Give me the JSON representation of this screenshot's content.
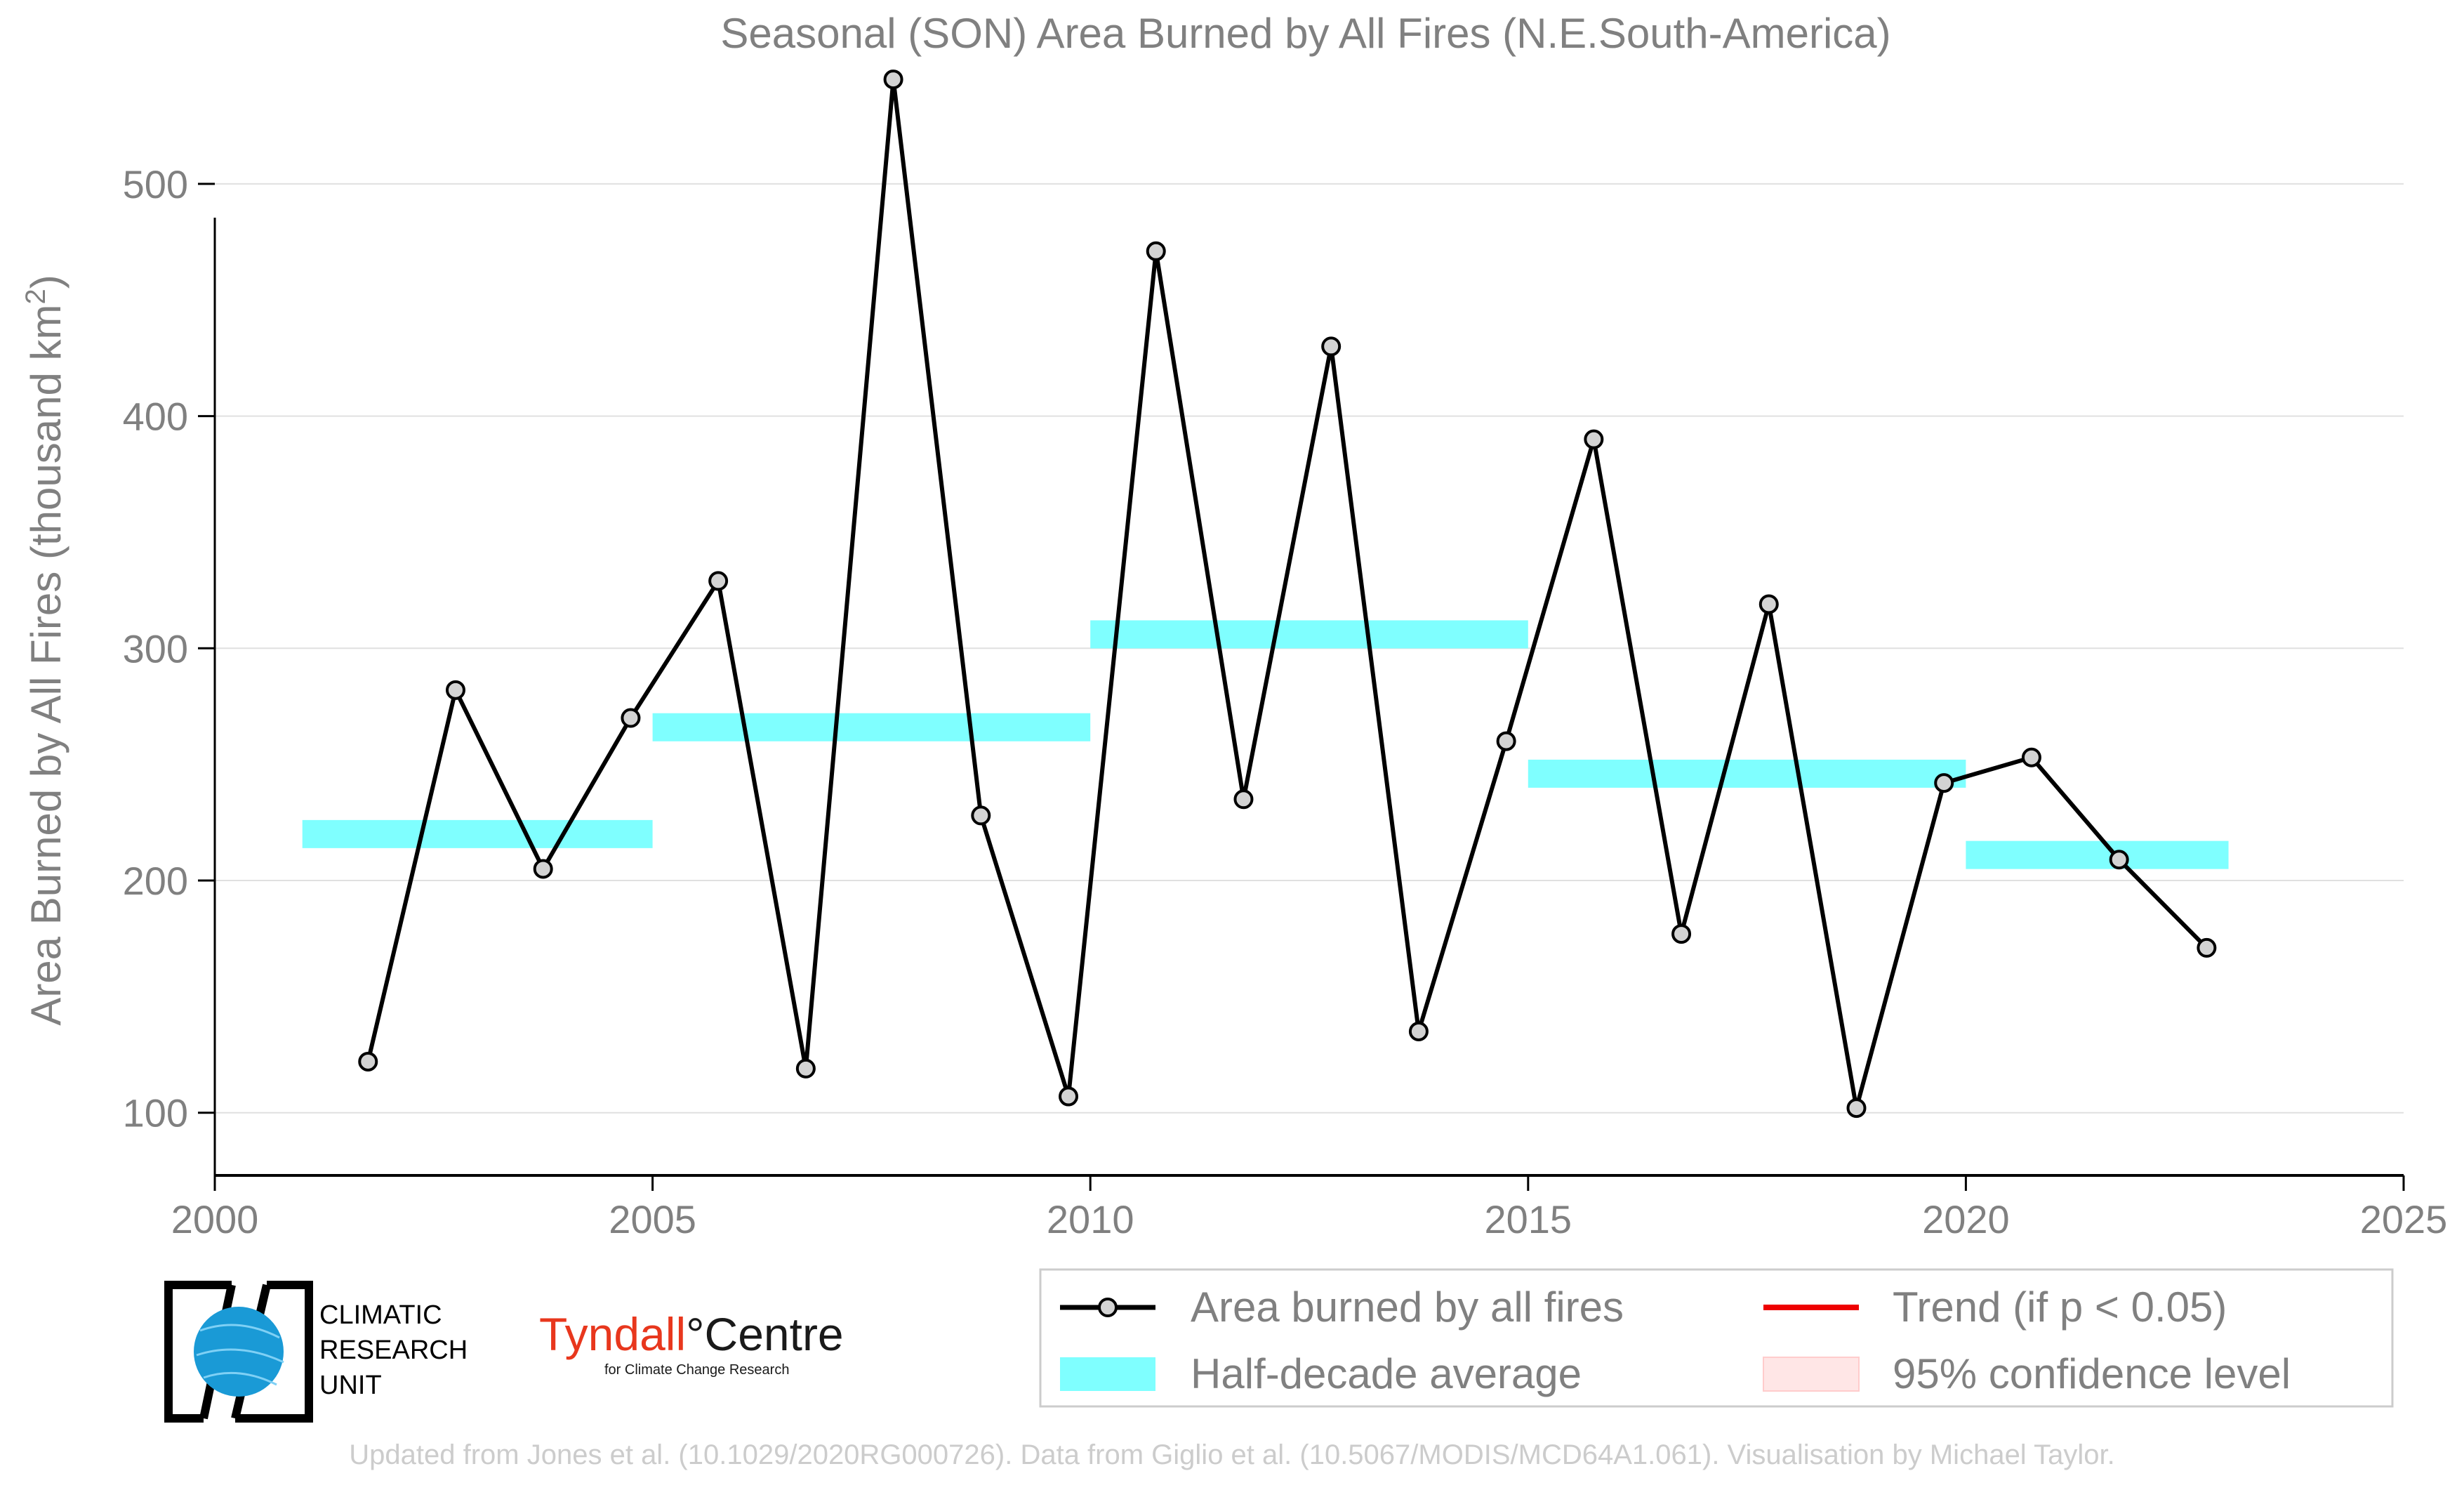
{
  "chart_data": {
    "type": "line",
    "title": "Seasonal (SON) Area Burned by All Fires (N.E.South-America)",
    "ylabel_main": "Area Burned by All Fires (thousand km",
    "ylabel_sup": "2",
    "ylabel_end": ")",
    "xlim": [
      2000,
      2025
    ],
    "ylim": [
      73,
      555
    ],
    "xticks": [
      2000,
      2005,
      2010,
      2015,
      2020,
      2025
    ],
    "yticks": [
      100,
      200,
      300,
      400,
      500
    ],
    "grid": "horizontal",
    "series": [
      {
        "name": "Area burned by all fires",
        "color": "#000000",
        "x": [
          2001.75,
          2002.75,
          2003.75,
          2004.75,
          2005.75,
          2006.75,
          2007.75,
          2008.75,
          2009.75,
          2010.75,
          2011.75,
          2012.75,
          2013.75,
          2014.75,
          2015.75,
          2016.75,
          2017.75,
          2018.75,
          2019.75,
          2020.75,
          2021.75,
          2022.75
        ],
        "values": [
          122,
          282,
          205,
          270,
          329,
          119,
          545,
          228,
          107,
          471,
          235,
          430,
          135,
          260,
          390,
          177,
          319,
          102,
          242,
          253,
          209,
          171
        ]
      }
    ],
    "half_decade_average": {
      "name": "Half-decade average",
      "color": "#7fffff",
      "segments": [
        {
          "x0": 2001,
          "x1": 2005,
          "value": 220
        },
        {
          "x0": 2005,
          "x1": 2010,
          "value": 266
        },
        {
          "x0": 2010,
          "x1": 2015,
          "value": 306
        },
        {
          "x0": 2015,
          "x1": 2020,
          "value": 246
        },
        {
          "x0": 2020,
          "x1": 2023,
          "value": 211
        }
      ]
    },
    "legend": {
      "placement": "bottom-right",
      "entries": [
        {
          "label": "Area burned by all fires",
          "kind": "line-marker",
          "color": "#000000"
        },
        {
          "label": "Trend (if p < 0.05)",
          "kind": "line",
          "color": "#ee0000"
        },
        {
          "label": "Half-decade average",
          "kind": "patch",
          "color": "#7fffff"
        },
        {
          "label": "95% confidence level",
          "kind": "patch",
          "color": "#ffe6e6"
        }
      ]
    }
  },
  "logos": {
    "cru_lines": [
      "CLIMATIC",
      "RESEARCH",
      "UNIT"
    ],
    "tyndall_name": "Tyndall",
    "tyndall_degree": "°",
    "tyndall_centre": "Centre",
    "tyndall_sub": "for Climate Change Research"
  },
  "footer": "Updated from Jones et al. (10.1029/2020RG000726). Data from Giglio et al. (10.5067/MODIS/MCD64A1.061). Visualisation by Michael Taylor.",
  "colors": {
    "text_grey": "#808080",
    "axis": "#000000",
    "grid": "#e0e0e0",
    "marker_fill": "#d3d3d3"
  }
}
